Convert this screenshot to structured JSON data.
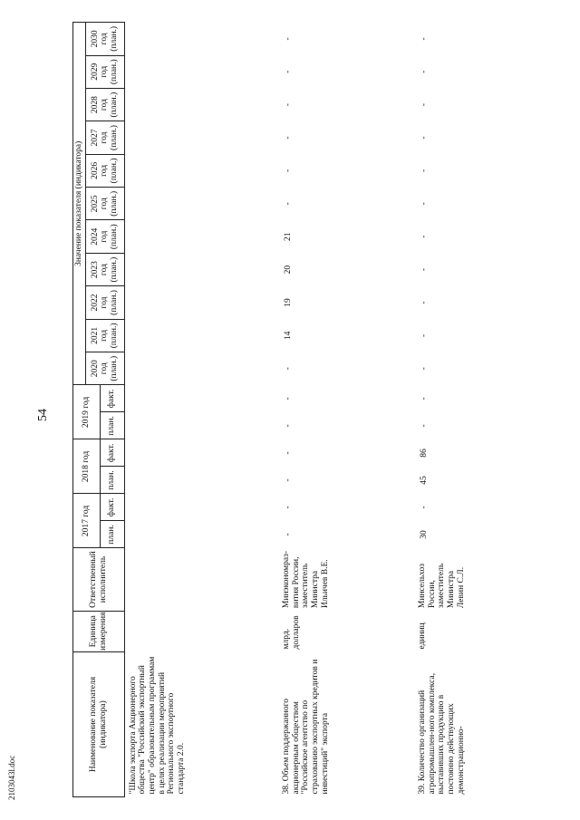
{
  "page_number": "54",
  "footer": "2103043l.doc",
  "table": {
    "header": {
      "name": "Наименование показателя (индикатора)",
      "unit": "Единица измерения",
      "responsible": "Ответственный исполнитель",
      "value_group": "Значение показателя (индикатора)",
      "years": [
        "2017 год",
        "2018 год",
        "2019 год"
      ],
      "plan": "план.",
      "fact": "факт.",
      "forecast_years": [
        "2020 год (план.)",
        "2021 год (план.)",
        "2022 год (план.)",
        "2023 год (план.)",
        "2024 год (план.)",
        "2025 год (план.)",
        "2026 год (план.)",
        "2027 год (план.)",
        "2028 год (план.)",
        "2029 год (план.)",
        "2030 год (план.)"
      ]
    },
    "rows": [
      {
        "name": "\"Школа экспорта Акционерного общества \"Российский экспортный центр\" образовательным программам в целях реализации мероприятий Регионального экспортного стандарта 2.0."
      },
      {
        "name": "38. Объем поддержанного акционерным обществом \"Российское агентство по страхованию экспортных кредитов и инвестиций\" экспорта",
        "unit": "млрд. долларов",
        "responsible": "Минэкономраз-вития России, заместитель Министра Ильичев В.Е.",
        "values": [
          "-",
          "-",
          "-",
          "-",
          "-",
          "-",
          "-",
          14,
          19,
          20,
          21,
          "-",
          "-",
          "-",
          "-",
          "-",
          "-"
        ]
      },
      {
        "name": "39. Количество организаций агропромышлен-ного комплекса, выставивших продукцию в постоянно действующих демонстрационно-",
        "unit": "единиц",
        "responsible": "Минсельхоз России, заместитель Министра Левин С.Л.",
        "values": [
          30,
          "-",
          45,
          86,
          "-",
          "-",
          "-",
          "-",
          "-",
          "-",
          "-",
          "-",
          "-",
          "-",
          "-",
          "-",
          "-"
        ]
      }
    ]
  }
}
